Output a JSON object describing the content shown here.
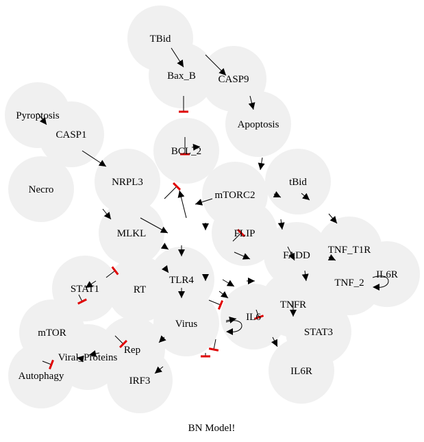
{
  "diagram": {
    "title": "BN Model!",
    "node_color": "#f0f0f0",
    "inhibit_color": "#e00000",
    "nodes": [
      {
        "id": "TBid",
        "label": "TBid"
      },
      {
        "id": "Bax_B",
        "label": "Bax_B"
      },
      {
        "id": "CASP9",
        "label": "CASP9"
      },
      {
        "id": "Apoptosis",
        "label": "Apoptosis"
      },
      {
        "id": "Pyroptosis",
        "label": "Pyroptosis"
      },
      {
        "id": "CASP1",
        "label": "CASP1"
      },
      {
        "id": "BCL2",
        "label": "BCL_2"
      },
      {
        "id": "NecroptosisX",
        "label": "Necro"
      },
      {
        "id": "NRPL3",
        "label": "NRPL3"
      },
      {
        "id": "mTORC2",
        "label": "mTORC2"
      },
      {
        "id": "tBid",
        "label": "tBid"
      },
      {
        "id": "MLKL",
        "label": "MLKL"
      },
      {
        "id": "FLIP",
        "label": "FLIP"
      },
      {
        "id": "FADD",
        "label": "FADD"
      },
      {
        "id": "TNF_T1R",
        "label": "TNF_T1R"
      },
      {
        "id": "IL6R_right",
        "label": "IL6R"
      },
      {
        "id": "STAT1",
        "label": "STAT1"
      },
      {
        "id": "RT",
        "label": "RT"
      },
      {
        "id": "TLR4",
        "label": "TLR4"
      },
      {
        "id": "TNFR",
        "label": "TNFR"
      },
      {
        "id": "TNF_2",
        "label": "TNF_2"
      },
      {
        "id": "mTOR",
        "label": "mTOR"
      },
      {
        "id": "Virus",
        "label": "Virus"
      },
      {
        "id": "IL6",
        "label": "IL6"
      },
      {
        "id": "STAT3",
        "label": "STAT3"
      },
      {
        "id": "Viral_Proteins",
        "label": "Viral_Proteins"
      },
      {
        "id": "Rep",
        "label": "Rep"
      },
      {
        "id": "Autophagy",
        "label": "Autophagy"
      },
      {
        "id": "IRF3",
        "label": "IRF3"
      },
      {
        "id": "IL6R",
        "label": "IL6R"
      }
    ]
  }
}
